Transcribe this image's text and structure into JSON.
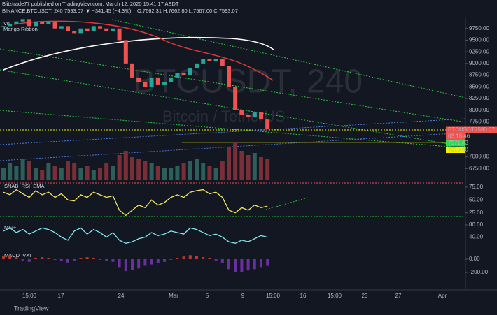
{
  "header": {
    "publisher": "Blitztrade77 published on TradingView.com, March 12, 2020 15:41:17 AEDT",
    "symbol": "BINANCE:BTCUSDT, 240",
    "last": "7593.07",
    "change": "▼ −341.45 (−4.3%)",
    "ohlc": "O:7662.31 H:7662.80 L:7567.00 C:7593.07",
    "vol": "Vol",
    "ribbon": "Mango Ribbon"
  },
  "watermark": {
    "symbol": "BTCUSDT, 240",
    "name": "Bitcoin / TetherUS"
  },
  "chart": {
    "type": "candlestick",
    "ylim": [
      6500,
      10000
    ],
    "yticks": [
      {
        "value": 9750,
        "label": "9750.00"
      },
      {
        "value": 9500,
        "label": "9500.00"
      },
      {
        "value": 9250,
        "label": "9250.00"
      },
      {
        "value": 9000,
        "label": "9000.00"
      },
      {
        "value": 8750,
        "label": "8750.00"
      },
      {
        "value": 8500,
        "label": "8500.00"
      },
      {
        "value": 8250,
        "label": "8250.00"
      },
      {
        "value": 8000,
        "label": "8000.00"
      },
      {
        "value": 7750,
        "label": "7750.00"
      },
      {
        "value": 7000,
        "label": "7000.00"
      },
      {
        "value": 6750,
        "label": "6750.00"
      }
    ],
    "closes": [
      9800,
      9850,
      9900,
      9950,
      9800,
      9900,
      9850,
      9900,
      9750,
      9800,
      9700,
      9650,
      9750,
      9700,
      9800,
      9750,
      9700,
      9750,
      9500,
      9000,
      8700,
      8600,
      8500,
      8700,
      8550,
      8600,
      8700,
      8800,
      8750,
      8900,
      9000,
      9100,
      9050,
      9100,
      8950,
      8500,
      8000,
      7900,
      7850,
      7950,
      7800,
      7593.07
    ],
    "volume": [
      30,
      40,
      35,
      50,
      45,
      30,
      25,
      40,
      35,
      30,
      45,
      40,
      30,
      35,
      25,
      30,
      40,
      35,
      60,
      70,
      55,
      50,
      45,
      40,
      35,
      30,
      30,
      35,
      40,
      45,
      50,
      40,
      35,
      30,
      45,
      80,
      90,
      70,
      60,
      65,
      55,
      50
    ],
    "badges": [
      {
        "text": "BTCUSDT",
        "value": "7593.07",
        "color": "#ef5350"
      },
      {
        "text": "03:18:46",
        "color": "#ef5350"
      },
      {
        "text": "7571.43",
        "color": "#26e04a"
      },
      {
        "text": "7315.68",
        "color": "#f2f200"
      }
    ],
    "x_labels": [
      "15:00",
      "17",
      "24",
      "Mar",
      "5",
      "9",
      "15:00",
      "16",
      "15:00",
      "23",
      "27",
      "Apr"
    ]
  },
  "rsi": {
    "title": "SNAB_RSI_EMA",
    "ylim": [
      15,
      83
    ],
    "yticks": [
      {
        "value": 75,
        "label": "75.00"
      },
      {
        "value": 50,
        "label": "50.00"
      },
      {
        "value": 25,
        "label": "25.00"
      }
    ],
    "values": [
      65,
      60,
      70,
      62,
      55,
      68,
      60,
      65,
      55,
      62,
      50,
      48,
      60,
      55,
      65,
      60,
      55,
      58,
      30,
      20,
      30,
      40,
      35,
      50,
      40,
      45,
      55,
      60,
      55,
      65,
      68,
      70,
      62,
      65,
      55,
      30,
      25,
      35,
      30,
      40,
      35,
      38
    ]
  },
  "mfi": {
    "title": "MFI+",
    "ylim": [
      7,
      96
    ],
    "yticks": [
      {
        "value": 80,
        "label": "80.00"
      },
      {
        "value": 40,
        "label": "40.00"
      }
    ],
    "values": [
      60,
      70,
      55,
      65,
      50,
      60,
      70,
      65,
      55,
      40,
      30,
      60,
      70,
      50,
      65,
      55,
      40,
      55,
      30,
      20,
      25,
      35,
      40,
      55,
      45,
      50,
      60,
      55,
      50,
      70,
      65,
      55,
      45,
      50,
      40,
      25,
      20,
      30,
      25,
      35,
      45,
      40
    ]
  },
  "macd": {
    "title": "MACD_VXI",
    "ylim": [
      -410,
      147
    ],
    "yticks": [
      {
        "value": 0,
        "label": "0.00"
      },
      {
        "value": -200,
        "label": "-200.00"
      }
    ],
    "values": [
      40,
      60,
      30,
      -20,
      -40,
      10,
      30,
      20,
      -10,
      -30,
      -50,
      -20,
      10,
      30,
      20,
      -10,
      -30,
      -40,
      -120,
      -180,
      -160,
      -140,
      -100,
      -80,
      -60,
      -40,
      -10,
      20,
      40,
      60,
      50,
      30,
      10,
      -20,
      -60,
      -150,
      -200,
      -190,
      -170,
      -150,
      -120,
      -100
    ]
  },
  "footer": {
    "brand": "TradingView"
  }
}
